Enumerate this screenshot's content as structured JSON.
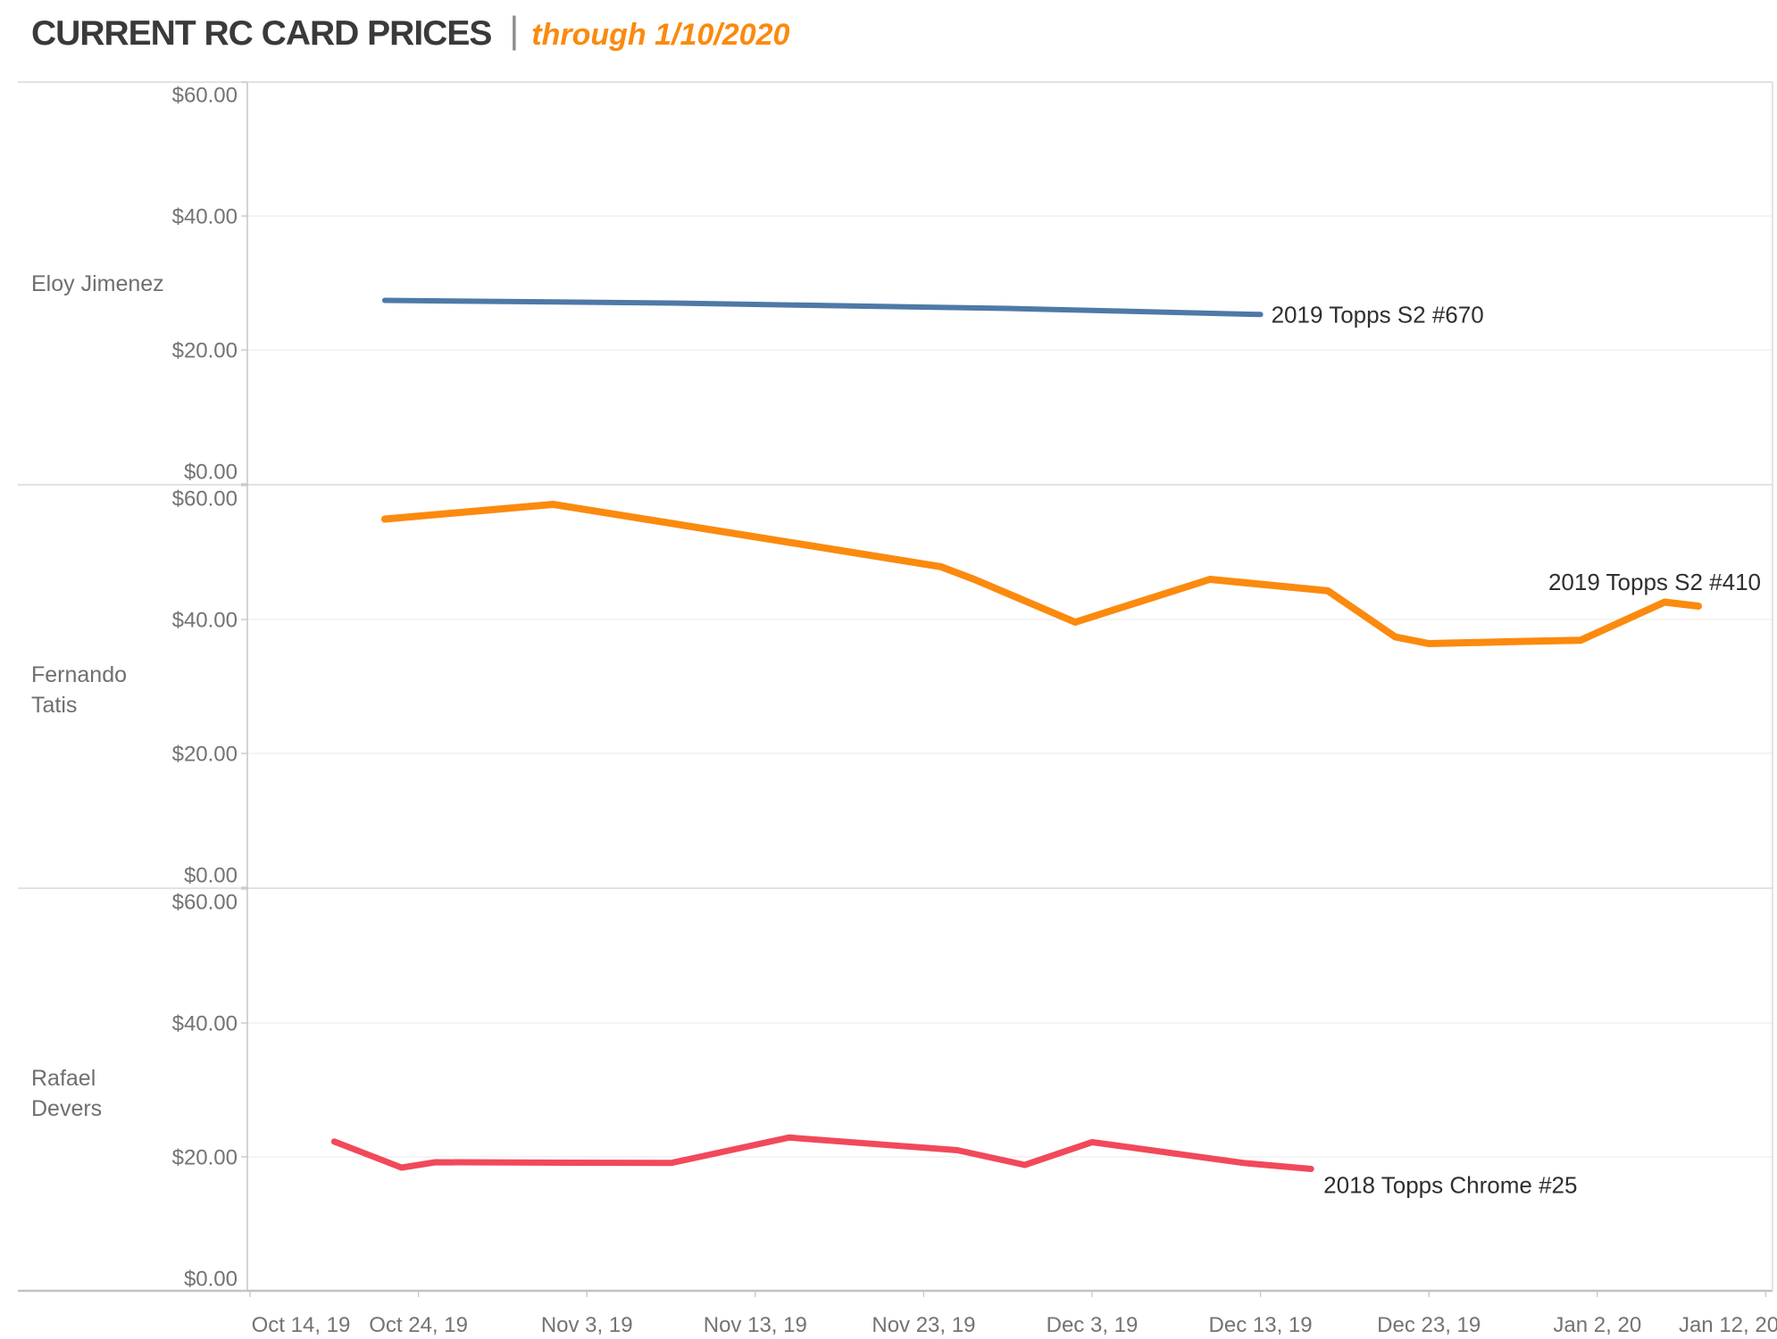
{
  "title": {
    "text": "CURRENT RC CARD PRICES",
    "separator": "|",
    "subtitle": "through 1/10/2020"
  },
  "colors": {
    "gridline": "#e9e9e9",
    "panel_border": "#d8d8d8",
    "axis_line": "#c2c2c2",
    "tick_mark": "#c9c9c9",
    "axis_text": "#737373",
    "row_label_text": "#6f6f6f",
    "series_label_text": "#2f2f2f",
    "subtitle_accent": "#fb8a0e"
  },
  "chart_data": {
    "type": "line",
    "title": "CURRENT RC CARD PRICES",
    "subtitle": "through 1/10/2020",
    "legend_position": "line-end-labels",
    "grid": true,
    "x_axis": {
      "start_date": "2019-10-14",
      "end_date": "2020-01-12",
      "tick_interval_days": 10,
      "tick_labels": [
        "Oct 14, 19",
        "Oct 24, 19",
        "Nov 3, 19",
        "Nov 13, 19",
        "Nov 23, 19",
        "Dec 3, 19",
        "Dec 13, 19",
        "Dec 23, 19",
        "Jan 2, 20",
        "Jan 12, 20"
      ]
    },
    "y_axis": {
      "range": [
        0,
        60
      ],
      "tick_values": [
        60,
        40,
        20,
        0
      ],
      "tick_labels": [
        "$60.00",
        "$40.00",
        "$20.00",
        "$0.00"
      ],
      "gridline_values": [
        60,
        40,
        20,
        0
      ]
    },
    "panels": [
      {
        "player": "Eloy Jimenez",
        "row_label_lines": [
          "Eloy Jimenez"
        ],
        "series": {
          "name": "2019 Topps S2 #670",
          "color": "#4e79a7",
          "points": [
            {
              "date": "2019-10-22",
              "value": 27.4
            },
            {
              "date": "2019-11-08",
              "value": 27.0
            },
            {
              "date": "2019-11-28",
              "value": 26.2
            },
            {
              "date": "2019-12-13",
              "value": 25.3
            }
          ]
        }
      },
      {
        "player": "Fernando Tatis",
        "row_label_lines": [
          "Fernando",
          "Tatis"
        ],
        "series": {
          "name": "2019 Topps S2 #410",
          "color": "#fb8a0e",
          "points": [
            {
              "date": "2019-10-22",
              "value": 55.0
            },
            {
              "date": "2019-11-01",
              "value": 57.2
            },
            {
              "date": "2019-11-24",
              "value": 47.9
            },
            {
              "date": "2019-11-26",
              "value": 46.0
            },
            {
              "date": "2019-12-02",
              "value": 39.6
            },
            {
              "date": "2019-12-10",
              "value": 46.0
            },
            {
              "date": "2019-12-17",
              "value": 44.3
            },
            {
              "date": "2019-12-21",
              "value": 37.4
            },
            {
              "date": "2019-12-23",
              "value": 36.4
            },
            {
              "date": "2019-12-28",
              "value": 36.7
            },
            {
              "date": "2020-01-01",
              "value": 36.9
            },
            {
              "date": "2020-01-06",
              "value": 42.6
            },
            {
              "date": "2020-01-08",
              "value": 42.0
            }
          ]
        }
      },
      {
        "player": "Rafael Devers",
        "row_label_lines": [
          "Rafael",
          "Devers"
        ],
        "series": {
          "name": "2018 Topps Chrome #25",
          "color": "#f1495a",
          "points": [
            {
              "date": "2019-10-19",
              "value": 22.3
            },
            {
              "date": "2019-10-23",
              "value": 18.4
            },
            {
              "date": "2019-10-25",
              "value": 19.2
            },
            {
              "date": "2019-11-08",
              "value": 19.1
            },
            {
              "date": "2019-11-15",
              "value": 22.9
            },
            {
              "date": "2019-11-25",
              "value": 21.0
            },
            {
              "date": "2019-11-29",
              "value": 18.8
            },
            {
              "date": "2019-12-03",
              "value": 22.2
            },
            {
              "date": "2019-12-12",
              "value": 19.1
            },
            {
              "date": "2019-12-16",
              "value": 18.2
            }
          ]
        }
      }
    ]
  }
}
